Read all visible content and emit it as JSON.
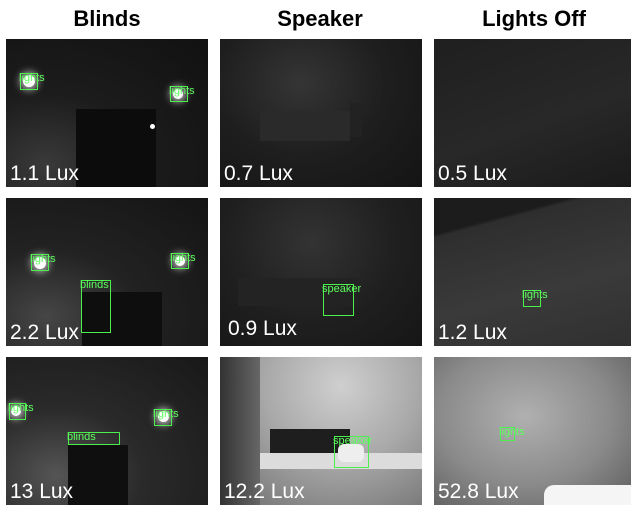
{
  "columns": [
    {
      "title": "Blinds"
    },
    {
      "title": "Speaker"
    },
    {
      "title": "Lights Off"
    }
  ],
  "rows": [
    [
      {
        "lux": "1.1 Lux",
        "detections": [
          {
            "label": "lights"
          },
          {
            "label": "lights"
          }
        ]
      },
      {
        "lux": "0.7 Lux",
        "detections": []
      },
      {
        "lux": "0.5 Lux",
        "detections": []
      }
    ],
    [
      {
        "lux": "2.2 Lux",
        "detections": [
          {
            "label": "lights"
          },
          {
            "label": "lights"
          },
          {
            "label": "blinds"
          }
        ]
      },
      {
        "lux": "0.9 Lux",
        "detections": [
          {
            "label": "speaker"
          }
        ]
      },
      {
        "lux": "1.2 Lux",
        "detections": [
          {
            "label": "lights"
          }
        ]
      }
    ],
    [
      {
        "lux": "13 Lux",
        "detections": [
          {
            "label": "lights"
          },
          {
            "label": "lights"
          },
          {
            "label": "blinds"
          }
        ]
      },
      {
        "lux": "12.2 Lux",
        "detections": [
          {
            "label": "speaker"
          }
        ]
      },
      {
        "lux": "52.8 Lux",
        "detections": [
          {
            "label": "lights"
          }
        ]
      }
    ]
  ],
  "colors": {
    "box": "#4cf04c",
    "background": "#ffffff"
  }
}
